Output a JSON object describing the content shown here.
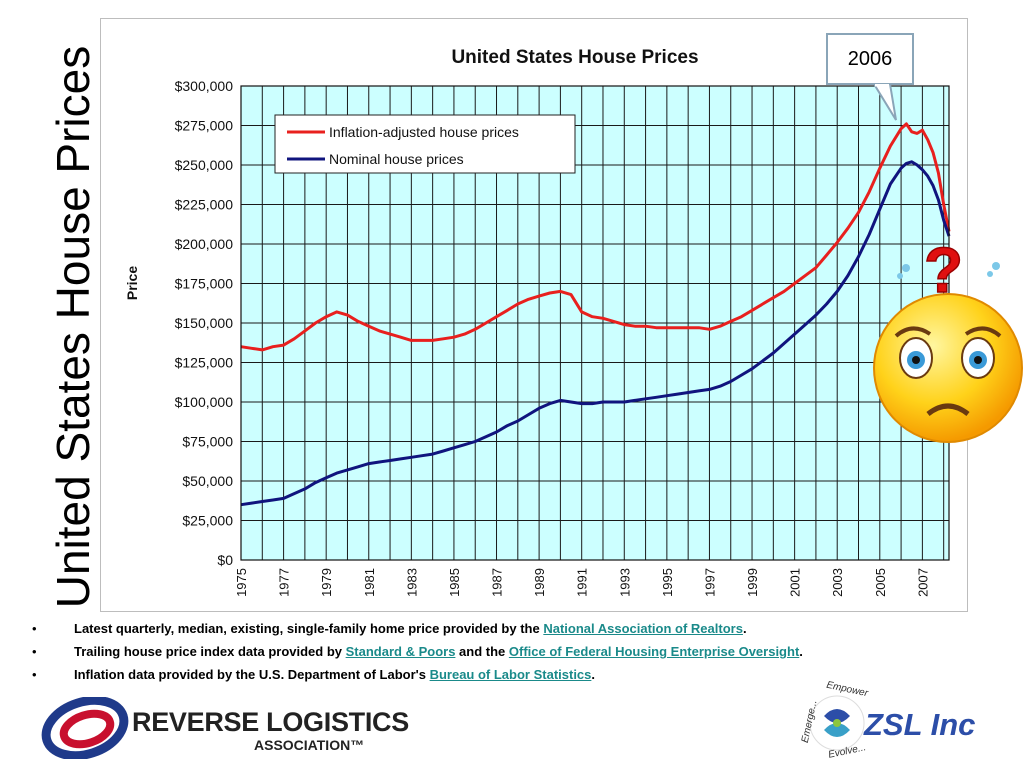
{
  "slide": {
    "side_title": "United States House Prices"
  },
  "chart_data": {
    "type": "line",
    "title": "United States House Prices",
    "xlabel": "",
    "ylabel": "Price",
    "xlim": [
      1975,
      2008.25
    ],
    "ylim": [
      0,
      300000
    ],
    "y_ticks": [
      0,
      25000,
      50000,
      75000,
      100000,
      125000,
      150000,
      175000,
      200000,
      225000,
      250000,
      275000,
      300000
    ],
    "y_tick_labels": [
      "$0",
      "$25,000",
      "$50,000",
      "$75,000",
      "$100,000",
      "$125,000",
      "$150,000",
      "$175,000",
      "$200,000",
      "$225,000",
      "$250,000",
      "$275,000",
      "$300,000"
    ],
    "x_ticks": [
      1975,
      1977,
      1979,
      1981,
      1983,
      1985,
      1987,
      1989,
      1991,
      1993,
      1995,
      1997,
      1999,
      2001,
      2003,
      2005,
      2007
    ],
    "x_tick_labels": [
      "1975",
      "1977",
      "1979",
      "1981",
      "1983",
      "1985",
      "1987",
      "1989",
      "1991",
      "1993",
      "1995",
      "1997",
      "1999",
      "2001",
      "2003",
      "2005",
      "2007"
    ],
    "grid": true,
    "legend_position": "top-left",
    "plot_background": "#ccffff",
    "series": [
      {
        "name": "Inflation-adjusted house prices",
        "color": "#e8201e",
        "x": [
          1975,
          1975.5,
          1976,
          1976.5,
          1977,
          1977.5,
          1978,
          1978.5,
          1979,
          1979.5,
          1980,
          1980.5,
          1981,
          1981.5,
          1982,
          1982.5,
          1983,
          1983.5,
          1984,
          1984.5,
          1985,
          1985.5,
          1986,
          1986.5,
          1987,
          1987.5,
          1988,
          1988.5,
          1989,
          1989.5,
          1990,
          1990.5,
          1991,
          1991.5,
          1992,
          1992.5,
          1993,
          1993.5,
          1994,
          1994.5,
          1995,
          1995.5,
          1996,
          1996.5,
          1997,
          1997.5,
          1998,
          1998.5,
          1999,
          1999.5,
          2000,
          2000.5,
          2001,
          2001.5,
          2002,
          2002.5,
          2003,
          2003.5,
          2004,
          2004.5,
          2005,
          2005.5,
          2006,
          2006.25,
          2006.5,
          2006.75,
          2007,
          2007.25,
          2007.5,
          2007.75,
          2008,
          2008.25
        ],
        "values": [
          135000,
          134000,
          133000,
          135000,
          136000,
          140000,
          145000,
          150000,
          154000,
          157000,
          155000,
          151000,
          148000,
          145000,
          143000,
          141000,
          139000,
          139000,
          139000,
          140000,
          141000,
          143000,
          146000,
          150000,
          154000,
          158000,
          162000,
          165000,
          167000,
          169000,
          170000,
          168000,
          157000,
          154000,
          153000,
          151000,
          149000,
          148000,
          148000,
          147000,
          147000,
          147000,
          147000,
          147000,
          146000,
          148000,
          151000,
          154000,
          158000,
          162000,
          166000,
          170000,
          175000,
          180000,
          185000,
          193000,
          201000,
          210000,
          220000,
          233000,
          248000,
          262000,
          273000,
          276000,
          271000,
          270000,
          272000,
          266000,
          258000,
          245000,
          225000,
          208000
        ]
      },
      {
        "name": "Nominal house prices",
        "color": "#10147e",
        "x": [
          1975,
          1975.5,
          1976,
          1976.5,
          1977,
          1977.5,
          1978,
          1978.5,
          1979,
          1979.5,
          1980,
          1980.5,
          1981,
          1981.5,
          1982,
          1982.5,
          1983,
          1983.5,
          1984,
          1984.5,
          1985,
          1985.5,
          1986,
          1986.5,
          1987,
          1987.5,
          1988,
          1988.5,
          1989,
          1989.5,
          1990,
          1990.5,
          1991,
          1991.5,
          1992,
          1992.5,
          1993,
          1993.5,
          1994,
          1994.5,
          1995,
          1995.5,
          1996,
          1996.5,
          1997,
          1997.5,
          1998,
          1998.5,
          1999,
          1999.5,
          2000,
          2000.5,
          2001,
          2001.5,
          2002,
          2002.5,
          2003,
          2003.5,
          2004,
          2004.5,
          2005,
          2005.5,
          2006,
          2006.25,
          2006.5,
          2006.75,
          2007,
          2007.25,
          2007.5,
          2007.75,
          2008,
          2008.25
        ],
        "values": [
          35000,
          36000,
          37000,
          38000,
          39000,
          42000,
          45000,
          49000,
          52000,
          55000,
          57000,
          59000,
          61000,
          62000,
          63000,
          64000,
          65000,
          66000,
          67000,
          69000,
          71000,
          73000,
          75000,
          78000,
          81000,
          85000,
          88000,
          92000,
          96000,
          99000,
          101000,
          100000,
          99000,
          99000,
          100000,
          100000,
          100000,
          101000,
          102000,
          103000,
          104000,
          105000,
          106000,
          107000,
          108000,
          110000,
          113000,
          117000,
          121000,
          126000,
          131000,
          137000,
          143000,
          149000,
          155000,
          162000,
          170000,
          180000,
          192000,
          206000,
          222000,
          238000,
          248000,
          251000,
          252000,
          250000,
          247000,
          243000,
          237000,
          228000,
          215000,
          205000
        ]
      }
    ]
  },
  "callout": {
    "label": "2006"
  },
  "bullets": [
    {
      "dot": "•",
      "text_before": "Latest quarterly, median, existing, single-family home price provided by the ",
      "link1": "National Association of Realtors",
      "text_after": "."
    },
    {
      "dot": "•",
      "text_before": "Trailing house price index data provided by ",
      "link1": "Standard & Poors",
      "text_middle": " and the ",
      "link2": "Office of Federal Housing Enterprise Oversight",
      "text_after": "."
    },
    {
      "dot": "•",
      "text_before": "Inflation data provided by the U.S. Department of Labor's ",
      "link1": "Bureau of Labor Statistics",
      "text_after": "."
    }
  ],
  "logos": {
    "rla_line1": "REVERSE LOGISTICS",
    "rla_line2": "ASSOCIATION™",
    "zsl_name": "ZSL Inc",
    "zsl_ring_1": "Empower",
    "zsl_ring_2": "Emerge...",
    "zsl_ring_3": "Evolve..."
  }
}
